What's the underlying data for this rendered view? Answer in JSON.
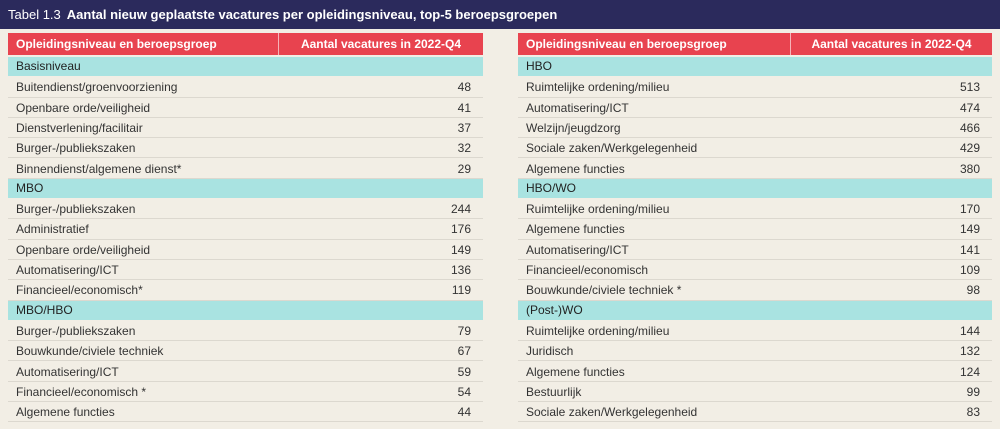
{
  "header": {
    "label": "Tabel 1.3",
    "title": "Aantal nieuw geplaatste vacatures per opleidingsniveau, top-5 beroepsgroepen"
  },
  "tables": [
    {
      "headers": [
        "Opleidingsniveau en beroepsgroep",
        "Aantal vacatures in 2022-Q4"
      ],
      "sections": [
        {
          "name": "Basisniveau",
          "rows": [
            [
              "Buitendienst/groenvoorziening",
              48
            ],
            [
              "Openbare orde/veiligheid",
              41
            ],
            [
              "Dienstverlening/facilitair",
              37
            ],
            [
              "Burger-/publiekszaken",
              32
            ],
            [
              "Binnendienst/algemene dienst*",
              29
            ]
          ]
        },
        {
          "name": "MBO",
          "rows": [
            [
              "Burger-/publiekszaken",
              244
            ],
            [
              "Administratief",
              176
            ],
            [
              "Openbare orde/veiligheid",
              149
            ],
            [
              "Automatisering/ICT",
              136
            ],
            [
              "Financieel/economisch*",
              119
            ]
          ]
        },
        {
          "name": "MBO/HBO",
          "rows": [
            [
              "Burger-/publiekszaken",
              79
            ],
            [
              "Bouwkunde/civiele techniek",
              67
            ],
            [
              "Automatisering/ICT",
              59
            ],
            [
              "Financieel/economisch *",
              54
            ],
            [
              "Algemene functies",
              44
            ]
          ]
        }
      ]
    },
    {
      "headers": [
        "Opleidingsniveau en beroepsgroep",
        "Aantal vacatures in 2022-Q4"
      ],
      "sections": [
        {
          "name": "HBO",
          "rows": [
            [
              "Ruimtelijke ordening/milieu",
              513
            ],
            [
              "Automatisering/ICT",
              474
            ],
            [
              "Welzijn/jeugdzorg",
              466
            ],
            [
              "Sociale zaken/Werkgelegenheid",
              429
            ],
            [
              "Algemene functies",
              380
            ]
          ]
        },
        {
          "name": "HBO/WO",
          "rows": [
            [
              "Ruimtelijke ordening/milieu",
              170
            ],
            [
              "Algemene functies",
              149
            ],
            [
              "Automatisering/ICT",
              141
            ],
            [
              "Financieel/economisch",
              109
            ],
            [
              "Bouwkunde/civiele techniek *",
              98
            ]
          ]
        },
        {
          "name": "(Post-)WO",
          "rows": [
            [
              "Ruimtelijke ordening/milieu",
              144
            ],
            [
              "Juridisch",
              132
            ],
            [
              "Algemene functies",
              124
            ],
            [
              "Bestuurlijk",
              99
            ],
            [
              "Sociale zaken/Werkgelegenheid",
              83
            ]
          ]
        }
      ]
    }
  ]
}
